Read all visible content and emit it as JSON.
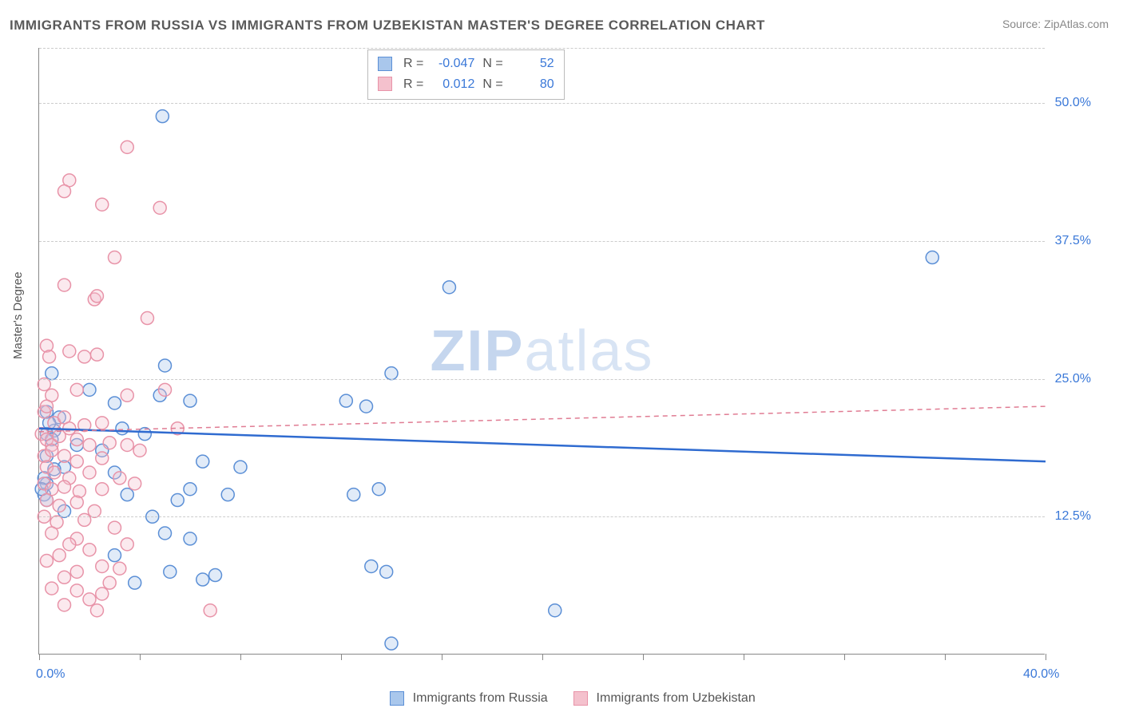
{
  "title": "IMMIGRANTS FROM RUSSIA VS IMMIGRANTS FROM UZBEKISTAN MASTER'S DEGREE CORRELATION CHART",
  "source": "Source: ZipAtlas.com",
  "y_axis_label": "Master's Degree",
  "watermark_bold": "ZIP",
  "watermark_light": "atlas",
  "chart": {
    "type": "scatter",
    "background_color": "#ffffff",
    "grid_color": "#cccccc",
    "axis_color": "#888888",
    "text_color": "#555555",
    "value_color": "#3a78d8",
    "xlim": [
      0,
      40
    ],
    "ylim": [
      0,
      55
    ],
    "x_ticks": [
      0,
      4,
      8,
      12,
      16,
      20,
      24,
      28,
      32,
      36,
      40
    ],
    "x_labels": [
      {
        "x": 0,
        "text": "0.0%"
      },
      {
        "x": 40,
        "text": "40.0%"
      }
    ],
    "y_gridlines": [
      12.5,
      25.0,
      37.5,
      50.0,
      55.0
    ],
    "y_labels": [
      {
        "y": 12.5,
        "text": "12.5%"
      },
      {
        "y": 25.0,
        "text": "25.0%"
      },
      {
        "y": 37.5,
        "text": "37.5%"
      },
      {
        "y": 50.0,
        "text": "50.0%"
      }
    ],
    "marker_radius": 8,
    "series": [
      {
        "name": "Immigrants from Russia",
        "fill_color": "#a9c7ec",
        "stroke_color": "#5b8fd6",
        "r_value": "-0.047",
        "n_value": "52",
        "regression": {
          "x1": 0,
          "y1": 20.5,
          "x2": 40,
          "y2": 17.5,
          "stroke_width": 2.5,
          "dash": null,
          "color": "#2f6bd0"
        },
        "data": [
          {
            "x": 4.9,
            "y": 48.8
          },
          {
            "x": 16.3,
            "y": 33.3
          },
          {
            "x": 35.5,
            "y": 36.0
          },
          {
            "x": 5.0,
            "y": 26.2
          },
          {
            "x": 0.5,
            "y": 25.5
          },
          {
            "x": 0.3,
            "y": 22.0
          },
          {
            "x": 3.0,
            "y": 22.8
          },
          {
            "x": 3.3,
            "y": 20.5
          },
          {
            "x": 0.3,
            "y": 15.5
          },
          {
            "x": 0.2,
            "y": 14.5
          },
          {
            "x": 2.0,
            "y": 24.0
          },
          {
            "x": 4.8,
            "y": 23.5
          },
          {
            "x": 6.0,
            "y": 23.0
          },
          {
            "x": 14.0,
            "y": 25.5
          },
          {
            "x": 12.2,
            "y": 23.0
          },
          {
            "x": 13.0,
            "y": 22.5
          },
          {
            "x": 0.8,
            "y": 21.5
          },
          {
            "x": 0.3,
            "y": 20.0
          },
          {
            "x": 0.6,
            "y": 20.3
          },
          {
            "x": 1.5,
            "y": 19.0
          },
          {
            "x": 4.2,
            "y": 20.0
          },
          {
            "x": 1.0,
            "y": 17.0
          },
          {
            "x": 3.0,
            "y": 16.5
          },
          {
            "x": 6.5,
            "y": 17.5
          },
          {
            "x": 8.0,
            "y": 17.0
          },
          {
            "x": 0.2,
            "y": 16.0
          },
          {
            "x": 0.3,
            "y": 14.0
          },
          {
            "x": 0.1,
            "y": 15.0
          },
          {
            "x": 3.5,
            "y": 14.5
          },
          {
            "x": 5.5,
            "y": 14.0
          },
          {
            "x": 6.0,
            "y": 15.0
          },
          {
            "x": 7.5,
            "y": 14.5
          },
          {
            "x": 12.5,
            "y": 14.5
          },
          {
            "x": 13.5,
            "y": 15.0
          },
          {
            "x": 4.5,
            "y": 12.5
          },
          {
            "x": 5.0,
            "y": 11.0
          },
          {
            "x": 6.0,
            "y": 10.5
          },
          {
            "x": 3.0,
            "y": 9.0
          },
          {
            "x": 5.2,
            "y": 7.5
          },
          {
            "x": 3.8,
            "y": 6.5
          },
          {
            "x": 6.5,
            "y": 6.8
          },
          {
            "x": 7.0,
            "y": 7.2
          },
          {
            "x": 13.2,
            "y": 8.0
          },
          {
            "x": 13.8,
            "y": 7.5
          },
          {
            "x": 14.0,
            "y": 1.0
          },
          {
            "x": 1.0,
            "y": 13.0
          },
          {
            "x": 20.5,
            "y": 4.0
          },
          {
            "x": 0.3,
            "y": 18.0
          },
          {
            "x": 0.5,
            "y": 19.5
          },
          {
            "x": 0.4,
            "y": 21.0
          },
          {
            "x": 2.5,
            "y": 18.5
          },
          {
            "x": 0.6,
            "y": 16.8
          }
        ]
      },
      {
        "name": "Immigrants from Uzbekistan",
        "fill_color": "#f4c1cd",
        "stroke_color": "#e893a8",
        "r_value": "0.012",
        "n_value": "80",
        "regression": {
          "x1": 0,
          "y1": 20.2,
          "x2": 40,
          "y2": 22.5,
          "stroke_width": 1.5,
          "dash": "6,5",
          "color": "#e07c93"
        },
        "data": [
          {
            "x": 3.5,
            "y": 46.0
          },
          {
            "x": 1.2,
            "y": 43.0
          },
          {
            "x": 1.0,
            "y": 42.0
          },
          {
            "x": 2.5,
            "y": 40.8
          },
          {
            "x": 4.8,
            "y": 40.5
          },
          {
            "x": 3.0,
            "y": 36.0
          },
          {
            "x": 1.0,
            "y": 33.5
          },
          {
            "x": 2.2,
            "y": 32.2
          },
          {
            "x": 2.3,
            "y": 32.5
          },
          {
            "x": 4.3,
            "y": 30.5
          },
          {
            "x": 0.3,
            "y": 28.0
          },
          {
            "x": 0.4,
            "y": 27.0
          },
          {
            "x": 1.2,
            "y": 27.5
          },
          {
            "x": 1.8,
            "y": 27.0
          },
          {
            "x": 2.3,
            "y": 27.2
          },
          {
            "x": 0.2,
            "y": 24.5
          },
          {
            "x": 0.5,
            "y": 23.5
          },
          {
            "x": 1.5,
            "y": 24.0
          },
          {
            "x": 3.5,
            "y": 23.5
          },
          {
            "x": 5.0,
            "y": 24.0
          },
          {
            "x": 0.2,
            "y": 22.0
          },
          {
            "x": 0.3,
            "y": 22.5
          },
          {
            "x": 0.6,
            "y": 21.0
          },
          {
            "x": 1.0,
            "y": 21.5
          },
          {
            "x": 1.2,
            "y": 20.5
          },
          {
            "x": 1.8,
            "y": 20.8
          },
          {
            "x": 2.5,
            "y": 21.0
          },
          {
            "x": 5.5,
            "y": 20.5
          },
          {
            "x": 0.1,
            "y": 20.0
          },
          {
            "x": 0.3,
            "y": 19.5
          },
          {
            "x": 0.5,
            "y": 19.0
          },
          {
            "x": 0.8,
            "y": 19.8
          },
          {
            "x": 1.5,
            "y": 19.5
          },
          {
            "x": 2.0,
            "y": 19.0
          },
          {
            "x": 2.8,
            "y": 19.2
          },
          {
            "x": 3.5,
            "y": 19.0
          },
          {
            "x": 0.2,
            "y": 18.0
          },
          {
            "x": 0.5,
            "y": 18.5
          },
          {
            "x": 1.0,
            "y": 18.0
          },
          {
            "x": 1.5,
            "y": 17.5
          },
          {
            "x": 2.5,
            "y": 17.8
          },
          {
            "x": 4.0,
            "y": 18.5
          },
          {
            "x": 0.3,
            "y": 17.0
          },
          {
            "x": 0.6,
            "y": 16.5
          },
          {
            "x": 1.2,
            "y": 16.0
          },
          {
            "x": 2.0,
            "y": 16.5
          },
          {
            "x": 3.2,
            "y": 16.0
          },
          {
            "x": 0.2,
            "y": 15.5
          },
          {
            "x": 0.5,
            "y": 15.0
          },
          {
            "x": 1.0,
            "y": 15.2
          },
          {
            "x": 1.6,
            "y": 14.8
          },
          {
            "x": 2.5,
            "y": 15.0
          },
          {
            "x": 3.8,
            "y": 15.5
          },
          {
            "x": 0.3,
            "y": 14.0
          },
          {
            "x": 0.8,
            "y": 13.5
          },
          {
            "x": 1.5,
            "y": 13.8
          },
          {
            "x": 2.2,
            "y": 13.0
          },
          {
            "x": 0.2,
            "y": 12.5
          },
          {
            "x": 0.7,
            "y": 12.0
          },
          {
            "x": 1.8,
            "y": 12.2
          },
          {
            "x": 3.0,
            "y": 11.5
          },
          {
            "x": 0.5,
            "y": 11.0
          },
          {
            "x": 1.5,
            "y": 10.5
          },
          {
            "x": 1.2,
            "y": 10.0
          },
          {
            "x": 2.0,
            "y": 9.5
          },
          {
            "x": 0.8,
            "y": 9.0
          },
          {
            "x": 0.3,
            "y": 8.5
          },
          {
            "x": 2.5,
            "y": 8.0
          },
          {
            "x": 1.5,
            "y": 7.5
          },
          {
            "x": 1.0,
            "y": 7.0
          },
          {
            "x": 2.8,
            "y": 6.5
          },
          {
            "x": 3.2,
            "y": 7.8
          },
          {
            "x": 1.5,
            "y": 5.8
          },
          {
            "x": 2.0,
            "y": 5.0
          },
          {
            "x": 2.5,
            "y": 5.5
          },
          {
            "x": 1.0,
            "y": 4.5
          },
          {
            "x": 2.3,
            "y": 4.0
          },
          {
            "x": 6.8,
            "y": 4.0
          },
          {
            "x": 0.5,
            "y": 6.0
          },
          {
            "x": 3.5,
            "y": 10.0
          }
        ]
      }
    ]
  },
  "legend_bottom": {
    "items": [
      {
        "label": "Immigrants from Russia",
        "fill": "#a9c7ec",
        "stroke": "#5b8fd6"
      },
      {
        "label": "Immigrants from Uzbekistan",
        "fill": "#f4c1cd",
        "stroke": "#e893a8"
      }
    ]
  }
}
